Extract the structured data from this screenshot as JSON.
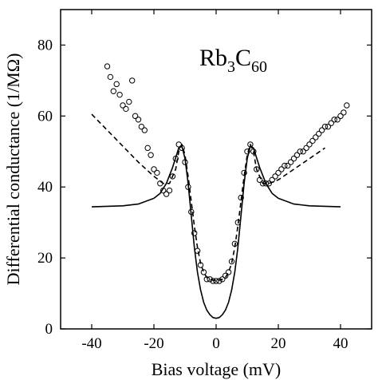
{
  "chart_data": {
    "type": "scatter",
    "annotation": {
      "base": "Rb",
      "sub1": "3",
      "mid": "C",
      "sub2": "60"
    },
    "xlabel": "Bias voltage (mV)",
    "ylabel": "Differential conductance (1/MΩ)",
    "xlim": [
      -50,
      50
    ],
    "ylim": [
      0,
      90
    ],
    "xticks": [
      -40,
      -20,
      0,
      20,
      40
    ],
    "yticks": [
      0,
      20,
      40,
      60,
      80
    ],
    "grid": false,
    "legend": "none",
    "series": [
      {
        "kind": "markers",
        "marker": "open-circle",
        "points": [
          [
            -35,
            74
          ],
          [
            -34,
            71
          ],
          [
            -33,
            67
          ],
          [
            -32,
            69
          ],
          [
            -31,
            66
          ],
          [
            -30,
            63
          ],
          [
            -29,
            62
          ],
          [
            -28,
            64
          ],
          [
            -27,
            70
          ],
          [
            -26,
            60
          ],
          [
            -25,
            59
          ],
          [
            -24,
            57
          ],
          [
            -23,
            56
          ],
          [
            -22,
            51
          ],
          [
            -21,
            49
          ],
          [
            -20,
            45
          ],
          [
            -19,
            44
          ],
          [
            -18,
            41
          ],
          [
            -17,
            39
          ],
          [
            -16,
            38
          ],
          [
            -15,
            39
          ],
          [
            -14,
            43
          ],
          [
            -13,
            48
          ],
          [
            -12,
            52
          ],
          [
            -11,
            51
          ],
          [
            -10,
            47
          ],
          [
            -9,
            40
          ],
          [
            -8,
            33
          ],
          [
            -7,
            27
          ],
          [
            -6,
            22
          ],
          [
            -5,
            18
          ],
          [
            -4,
            16
          ],
          [
            -3,
            14
          ],
          [
            -2,
            14
          ],
          [
            -1,
            13.5
          ],
          [
            0,
            13.5
          ],
          [
            1,
            13.5
          ],
          [
            2,
            14
          ],
          [
            3,
            15
          ],
          [
            4,
            16
          ],
          [
            5,
            19
          ],
          [
            6,
            24
          ],
          [
            7,
            30
          ],
          [
            8,
            37
          ],
          [
            9,
            44
          ],
          [
            10,
            50
          ],
          [
            11,
            52
          ],
          [
            12,
            50
          ],
          [
            13,
            45
          ],
          [
            14,
            42
          ],
          [
            15,
            41
          ],
          [
            16,
            41
          ],
          [
            17,
            41
          ],
          [
            18,
            42
          ],
          [
            19,
            43
          ],
          [
            20,
            44
          ],
          [
            21,
            45
          ],
          [
            22,
            46
          ],
          [
            23,
            46
          ],
          [
            24,
            47
          ],
          [
            25,
            48
          ],
          [
            26,
            49
          ],
          [
            27,
            50
          ],
          [
            28,
            50
          ],
          [
            29,
            51
          ],
          [
            30,
            52
          ],
          [
            31,
            53
          ],
          [
            32,
            54
          ],
          [
            33,
            55
          ],
          [
            34,
            56
          ],
          [
            35,
            57
          ],
          [
            36,
            57
          ],
          [
            37,
            58
          ],
          [
            38,
            59
          ],
          [
            39,
            59
          ],
          [
            40,
            60
          ],
          [
            41,
            61
          ],
          [
            42,
            63
          ]
        ]
      },
      {
        "kind": "solid-line",
        "points": [
          [
            -40,
            34.4
          ],
          [
            -30,
            34.7
          ],
          [
            -25,
            35.2
          ],
          [
            -20,
            36.8
          ],
          [
            -18,
            38.2
          ],
          [
            -16,
            41
          ],
          [
            -14,
            45.5
          ],
          [
            -12,
            51
          ],
          [
            -11,
            51.5
          ],
          [
            -10,
            48
          ],
          [
            -9,
            41
          ],
          [
            -8,
            32
          ],
          [
            -7,
            23
          ],
          [
            -6,
            16
          ],
          [
            -5,
            11
          ],
          [
            -4,
            7.5
          ],
          [
            -3,
            5.3
          ],
          [
            -2,
            4
          ],
          [
            -1,
            3.2
          ],
          [
            0,
            3
          ],
          [
            1,
            3.2
          ],
          [
            2,
            4
          ],
          [
            3,
            5.3
          ],
          [
            4,
            7.5
          ],
          [
            5,
            11
          ],
          [
            6,
            16
          ],
          [
            7,
            23
          ],
          [
            8,
            32
          ],
          [
            9,
            41
          ],
          [
            10,
            48
          ],
          [
            11,
            51.5
          ],
          [
            12,
            51
          ],
          [
            14,
            45.5
          ],
          [
            16,
            41
          ],
          [
            18,
            38.2
          ],
          [
            20,
            36.8
          ],
          [
            25,
            35.2
          ],
          [
            30,
            34.7
          ],
          [
            40,
            34.4
          ]
        ]
      },
      {
        "kind": "dashed-line",
        "points": [
          [
            -40,
            60.5
          ],
          [
            -35,
            56
          ],
          [
            -30,
            51.5
          ],
          [
            -25,
            47
          ],
          [
            -20,
            43
          ],
          [
            -17,
            41
          ],
          [
            -15,
            41
          ],
          [
            -13,
            45
          ],
          [
            -12,
            50
          ],
          [
            -11,
            52
          ],
          [
            -10,
            49
          ],
          [
            -9,
            43
          ],
          [
            -8,
            36
          ],
          [
            -7,
            29
          ],
          [
            -6,
            23
          ],
          [
            -5,
            18.5
          ],
          [
            -4,
            16
          ],
          [
            -3,
            14.5
          ],
          [
            -2,
            14
          ],
          [
            0,
            13.5
          ],
          [
            2,
            14
          ],
          [
            3,
            14.5
          ],
          [
            4,
            16
          ],
          [
            5,
            18.5
          ],
          [
            6,
            23
          ],
          [
            7,
            29
          ],
          [
            8,
            36
          ],
          [
            9,
            43
          ],
          [
            10,
            49
          ],
          [
            11,
            52
          ],
          [
            12,
            50
          ],
          [
            13,
            45
          ],
          [
            15,
            41
          ],
          [
            17,
            41
          ],
          [
            20,
            42
          ],
          [
            25,
            45
          ],
          [
            30,
            48
          ],
          [
            35,
            51
          ]
        ]
      }
    ]
  }
}
